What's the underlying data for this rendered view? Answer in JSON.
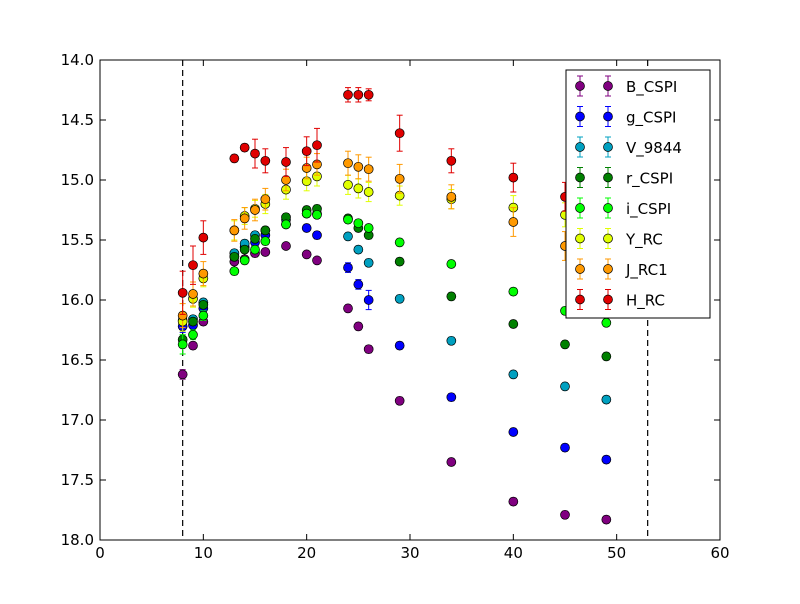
{
  "chart_data": {
    "type": "scatter",
    "title": "",
    "xlabel": "",
    "ylabel": "",
    "xlim": [
      0,
      60
    ],
    "ylim": [
      18.0,
      14.0
    ],
    "y_inverted": true,
    "grid": false,
    "legend_position": "upper-right",
    "x_ticks": [
      "0",
      "10",
      "20",
      "30",
      "40",
      "50",
      "60"
    ],
    "y_ticks": [
      "14.0",
      "14.5",
      "15.0",
      "15.5",
      "16.0",
      "16.5",
      "17.0",
      "17.5",
      "18.0"
    ],
    "vertical_lines": [
      8.0,
      53.0
    ],
    "series": [
      {
        "name": "B_CSPI",
        "color": "#800080",
        "x": [
          8,
          9,
          10,
          13,
          14,
          15,
          16,
          18,
          20,
          21,
          24,
          25,
          26,
          29,
          34,
          40,
          45,
          49
        ],
        "y": [
          16.62,
          16.38,
          16.18,
          15.68,
          15.66,
          15.61,
          15.6,
          15.55,
          15.62,
          15.67,
          16.07,
          16.22,
          16.41,
          16.84,
          17.35,
          17.68,
          17.79,
          17.83
        ],
        "err": [
          0.04,
          0.03,
          0.03,
          0.03,
          0.03,
          0.03,
          0.03,
          0.02,
          0.02,
          0.02,
          0.03,
          0.03,
          0.03,
          0.03,
          0.03,
          0.03,
          0.03,
          0.03
        ]
      },
      {
        "name": "g_CSPI",
        "color": "#0000ff",
        "x": [
          8,
          9,
          10,
          13,
          14,
          15,
          16,
          18,
          20,
          21,
          24,
          25,
          26,
          29,
          34,
          40,
          45,
          49
        ],
        "y": [
          16.22,
          16.21,
          16.07,
          15.64,
          15.56,
          15.52,
          15.46,
          15.37,
          15.4,
          15.46,
          15.73,
          15.87,
          16.0,
          16.38,
          16.81,
          17.1,
          17.23,
          17.33
        ],
        "err": [
          0.05,
          0.04,
          0.04,
          0.03,
          0.03,
          0.03,
          0.03,
          0.03,
          0.03,
          0.03,
          0.04,
          0.04,
          0.08,
          0.03,
          0.03,
          0.03,
          0.03,
          0.03
        ]
      },
      {
        "name": "V_9844",
        "color": "#00a0c0",
        "x": [
          8,
          9,
          10,
          13,
          14,
          15,
          16,
          18,
          20,
          21,
          24,
          25,
          26,
          29,
          34,
          40,
          45,
          49
        ],
        "y": [
          16.17,
          16.16,
          16.02,
          15.61,
          15.53,
          15.46,
          15.42,
          15.33,
          15.28,
          15.28,
          15.47,
          15.58,
          15.69,
          15.99,
          16.34,
          16.62,
          16.72,
          16.83
        ],
        "err": [
          0.04,
          0.03,
          0.03,
          0.03,
          0.03,
          0.03,
          0.03,
          0.03,
          0.03,
          0.03,
          0.03,
          0.03,
          0.03,
          0.03,
          0.03,
          0.03,
          0.03,
          0.03
        ]
      },
      {
        "name": "r_CSPI",
        "color": "#008000",
        "x": [
          8,
          9,
          10,
          13,
          14,
          15,
          16,
          18,
          20,
          21,
          24,
          25,
          26,
          29,
          34,
          40,
          45,
          49
        ],
        "y": [
          16.33,
          16.18,
          16.04,
          15.64,
          15.58,
          15.49,
          15.42,
          15.31,
          15.25,
          15.24,
          15.32,
          15.4,
          15.46,
          15.68,
          15.97,
          16.2,
          16.37,
          16.47
        ],
        "err": [
          0.04,
          0.03,
          0.03,
          0.03,
          0.03,
          0.03,
          0.03,
          0.03,
          0.03,
          0.03,
          0.03,
          0.03,
          0.03,
          0.03,
          0.03,
          0.03,
          0.03,
          0.03
        ]
      },
      {
        "name": "i_CSPI",
        "color": "#00ff00",
        "x": [
          8,
          9,
          10,
          13,
          14,
          15,
          16,
          18,
          20,
          21,
          24,
          25,
          26,
          29,
          34,
          40,
          45,
          49
        ],
        "y": [
          16.37,
          16.29,
          16.13,
          15.76,
          15.67,
          15.58,
          15.51,
          15.37,
          15.28,
          15.29,
          15.33,
          15.36,
          15.4,
          15.52,
          15.7,
          15.93,
          16.09,
          16.19
        ],
        "err": [
          0.08,
          0.04,
          0.04,
          0.03,
          0.03,
          0.03,
          0.03,
          0.03,
          0.03,
          0.03,
          0.03,
          0.03,
          0.03,
          0.03,
          0.03,
          0.03,
          0.03,
          0.03
        ]
      },
      {
        "name": "Y_RC",
        "color": "#e0ff00",
        "x": [
          8,
          9,
          10,
          13,
          14,
          15,
          16,
          18,
          20,
          21,
          24,
          25,
          26,
          29,
          34,
          40,
          45
        ],
        "y": [
          16.18,
          15.99,
          15.82,
          15.42,
          15.3,
          15.24,
          15.2,
          15.08,
          15.01,
          14.97,
          15.04,
          15.07,
          15.1,
          15.13,
          15.16,
          15.23,
          15.29
        ],
        "err": [
          0.08,
          0.07,
          0.07,
          0.08,
          0.07,
          0.07,
          0.08,
          0.08,
          0.08,
          0.08,
          0.08,
          0.08,
          0.08,
          0.08,
          0.08,
          0.1,
          0.1
        ]
      },
      {
        "name": "J_RC1",
        "color": "#ff9900",
        "x": [
          8,
          9,
          10,
          13,
          14,
          15,
          16,
          18,
          20,
          21,
          24,
          25,
          26,
          29,
          34,
          40,
          45
        ],
        "y": [
          16.13,
          15.95,
          15.78,
          15.42,
          15.32,
          15.25,
          15.16,
          15.0,
          14.9,
          14.87,
          14.86,
          14.89,
          14.91,
          14.99,
          15.14,
          15.35,
          15.55
        ],
        "err": [
          0.1,
          0.1,
          0.1,
          0.09,
          0.09,
          0.09,
          0.09,
          0.09,
          0.09,
          0.09,
          0.1,
          0.1,
          0.1,
          0.12,
          0.1,
          0.12,
          0.12
        ]
      },
      {
        "name": "H_RC",
        "color": "#e00000",
        "x": [
          8,
          9,
          10,
          13,
          14,
          15,
          16,
          18,
          20,
          21,
          24,
          25,
          26,
          29,
          34,
          40,
          45
        ],
        "y": [
          15.94,
          15.71,
          15.48,
          14.82,
          14.73,
          14.78,
          14.84,
          14.85,
          14.76,
          14.71,
          14.29,
          14.29,
          14.29,
          14.61,
          14.84,
          14.98,
          15.14
        ],
        "err": [
          0.18,
          0.16,
          0.14,
          0.03,
          0.03,
          0.12,
          0.1,
          0.12,
          0.12,
          0.14,
          0.06,
          0.06,
          0.05,
          0.15,
          0.1,
          0.12,
          0.12
        ]
      }
    ]
  }
}
